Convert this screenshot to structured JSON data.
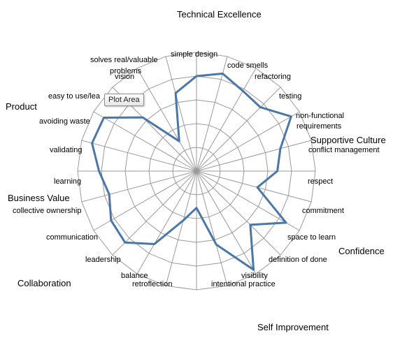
{
  "chart_data": {
    "type": "radar",
    "rmax": 10,
    "rings": 5,
    "grid": true,
    "series": [
      {
        "values": [
          8.0,
          8.5,
          7.8,
          7.6,
          9.2,
          7.3,
          6.8,
          5.3,
          8.7,
          6.4,
          9.6,
          6.4,
          3.1,
          4.3,
          7.1,
          8.5,
          8.3,
          7.6,
          8.2,
          9.1,
          9.0,
          6.4,
          2.9,
          6.8
        ]
      }
    ],
    "categories": [
      "simple design",
      "code smells",
      "refactoring",
      "testing",
      "non-functional requirements",
      "conflict management",
      "respect",
      "commitment",
      "space to learn",
      "definition of done",
      "visibility",
      "intentional practice",
      "retroflection",
      "balance",
      "leadership",
      "communication",
      "collective ownership",
      "learning",
      "validating",
      "avoiding waste",
      "easy to use/learn",
      "vision",
      "problems",
      "solves real/valuable"
    ],
    "groups": [
      "Technical Excellence",
      "Supportive Culture",
      "Confidence",
      "Self Improvement",
      "Collaboration",
      "Business Value",
      "Product"
    ],
    "style": {
      "line_color": "#4a76a8",
      "grid_color": "#9a9a9a"
    }
  },
  "tooltip": "Plot Area",
  "labels": {
    "simple_design": "simple design",
    "code_smells": "code smells",
    "refactoring": "refactoring",
    "testing": "testing",
    "nfr_1": "non-functional",
    "nfr_2": "requirements",
    "conflict_management": "conflict management",
    "respect": "respect",
    "commitment": "commitment",
    "space_to_learn": "space to learn",
    "definition_of_done": "definition of done",
    "visibility": "visibility",
    "intentional_practice": "intentional practice",
    "retroflection": "retroflection",
    "balance": "balance",
    "leadership": "leadership",
    "communication": "communication",
    "collective_ownership": "collective ownership",
    "learning": "learning",
    "validating": "validating",
    "avoiding_waste": "avoiding waste",
    "easy_to_use": "easy to use/lea",
    "vision": "vision",
    "problems": "problems",
    "solves_real": "solves real/valuable"
  },
  "groups": {
    "technical_excellence": "Technical Excellence",
    "supportive_culture": "Supportive Culture",
    "confidence": "Confidence",
    "self_improvement": "Self Improvement",
    "collaboration": "Collaboration",
    "business_value": "Business Value",
    "product": "Product"
  }
}
